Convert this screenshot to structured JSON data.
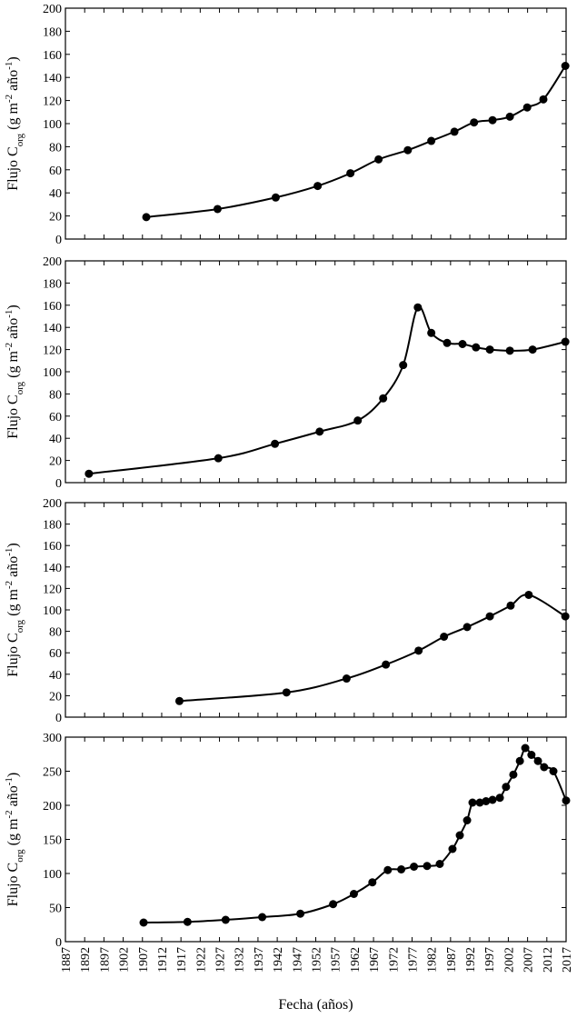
{
  "chart_data": [
    {
      "type": "line",
      "ylabel": [
        "Flujo C",
        "org",
        " (g m",
        "-2",
        " año",
        "-1",
        ")"
      ],
      "xlim": [
        1887,
        2017
      ],
      "xticks": [
        1887,
        1892,
        1897,
        1902,
        1907,
        1912,
        1917,
        1922,
        1927,
        1932,
        1937,
        1942,
        1947,
        1952,
        1957,
        1962,
        1967,
        1972,
        1977,
        1982,
        1987,
        1992,
        1997,
        2002,
        2007,
        2012,
        2017
      ],
      "ylim": [
        0,
        200
      ],
      "yticks": [
        0,
        20,
        40,
        60,
        80,
        100,
        120,
        140,
        160,
        180,
        200
      ],
      "color": "#000000",
      "x": [
        1908.0,
        1926.5,
        1941.6,
        1952.5,
        1961.0,
        1968.3,
        1975.9,
        1982.0,
        1988.0,
        1993.1,
        1997.9,
        2002.4,
        2006.9,
        2011.1,
        2016.8
      ],
      "values": [
        19,
        26,
        36,
        46,
        57,
        69,
        77,
        85,
        93,
        101,
        103,
        106,
        114,
        121,
        150
      ]
    },
    {
      "type": "line",
      "ylabel": [
        "Flujo C",
        "org",
        " (g m",
        "-2",
        " año",
        "-1",
        ")"
      ],
      "xlim": [
        1887,
        2017
      ],
      "xticks": [
        1887,
        1892,
        1897,
        1902,
        1907,
        1912,
        1917,
        1922,
        1927,
        1932,
        1937,
        1942,
        1947,
        1952,
        1957,
        1962,
        1967,
        1972,
        1977,
        1982,
        1987,
        1992,
        1997,
        2002,
        2007,
        2012,
        2017
      ],
      "ylim": [
        0,
        200
      ],
      "yticks": [
        0,
        20,
        40,
        60,
        80,
        100,
        120,
        140,
        160,
        180,
        200
      ],
      "color": "#000000",
      "x": [
        1893.1,
        1926.7,
        1941.4,
        1953.0,
        1962.9,
        1969.5,
        1974.7,
        1978.5,
        1982.0,
        1986.1,
        1990.1,
        1993.6,
        1997.2,
        2002.4,
        2008.3,
        2016.8
      ],
      "values": [
        8,
        22,
        35,
        46,
        56,
        76,
        106,
        158,
        135,
        126,
        125,
        122,
        120,
        119,
        120,
        127
      ]
    },
    {
      "type": "line",
      "ylabel": [
        "Flujo C",
        "org",
        " (g m",
        "-2",
        " año",
        "-1",
        ")"
      ],
      "xlim": [
        1887,
        2017
      ],
      "xticks": [
        1887,
        1892,
        1897,
        1902,
        1907,
        1912,
        1917,
        1922,
        1927,
        1932,
        1937,
        1942,
        1947,
        1952,
        1957,
        1962,
        1967,
        1972,
        1977,
        1982,
        1987,
        1992,
        1997,
        2002,
        2007,
        2012,
        2017
      ],
      "ylim": [
        0,
        200
      ],
      "yticks": [
        0,
        20,
        40,
        60,
        80,
        100,
        120,
        140,
        160,
        180,
        200
      ],
      "color": "#000000",
      "x": [
        1916.6,
        1944.4,
        1960.0,
        1970.2,
        1978.7,
        1985.3,
        1991.3,
        1997.2,
        2002.6,
        2007.3,
        2016.8
      ],
      "values": [
        15,
        23,
        36,
        49,
        62,
        75,
        84,
        94,
        104,
        114,
        94
      ]
    },
    {
      "type": "line",
      "ylabel": [
        "Flujo C",
        "org",
        " (g m",
        "-2",
        " año",
        "-1",
        ")"
      ],
      "xlabel": "Fecha (años)",
      "xlim": [
        1887,
        2017
      ],
      "xticks": [
        1887,
        1892,
        1897,
        1902,
        1907,
        1912,
        1917,
        1922,
        1927,
        1932,
        1937,
        1942,
        1947,
        1952,
        1957,
        1962,
        1967,
        1972,
        1977,
        1982,
        1987,
        1992,
        1997,
        2002,
        2007,
        2012,
        2017
      ],
      "ylim": [
        0,
        300
      ],
      "yticks": [
        0,
        50,
        100,
        150,
        200,
        250,
        300
      ],
      "color": "#000000",
      "x": [
        1907.3,
        1918.7,
        1928.6,
        1938.1,
        1948.0,
        1956.5,
        1961.9,
        1966.7,
        1970.7,
        1974.2,
        1977.5,
        1980.9,
        1984.2,
        1987.5,
        1989.4,
        1991.3,
        1992.7,
        1994.6,
        1996.2,
        1997.9,
        1999.8,
        2001.4,
        2003.3,
        2005.0,
        2006.4,
        2008.0,
        2009.7,
        2011.3,
        2013.7,
        2017.0
      ],
      "values": [
        28,
        29,
        32,
        36,
        41,
        55,
        70,
        87,
        105,
        106,
        110,
        111,
        114,
        136,
        156,
        178,
        204,
        204,
        206,
        208,
        211,
        227,
        245,
        265,
        284,
        274,
        265,
        256,
        250,
        207
      ]
    }
  ]
}
